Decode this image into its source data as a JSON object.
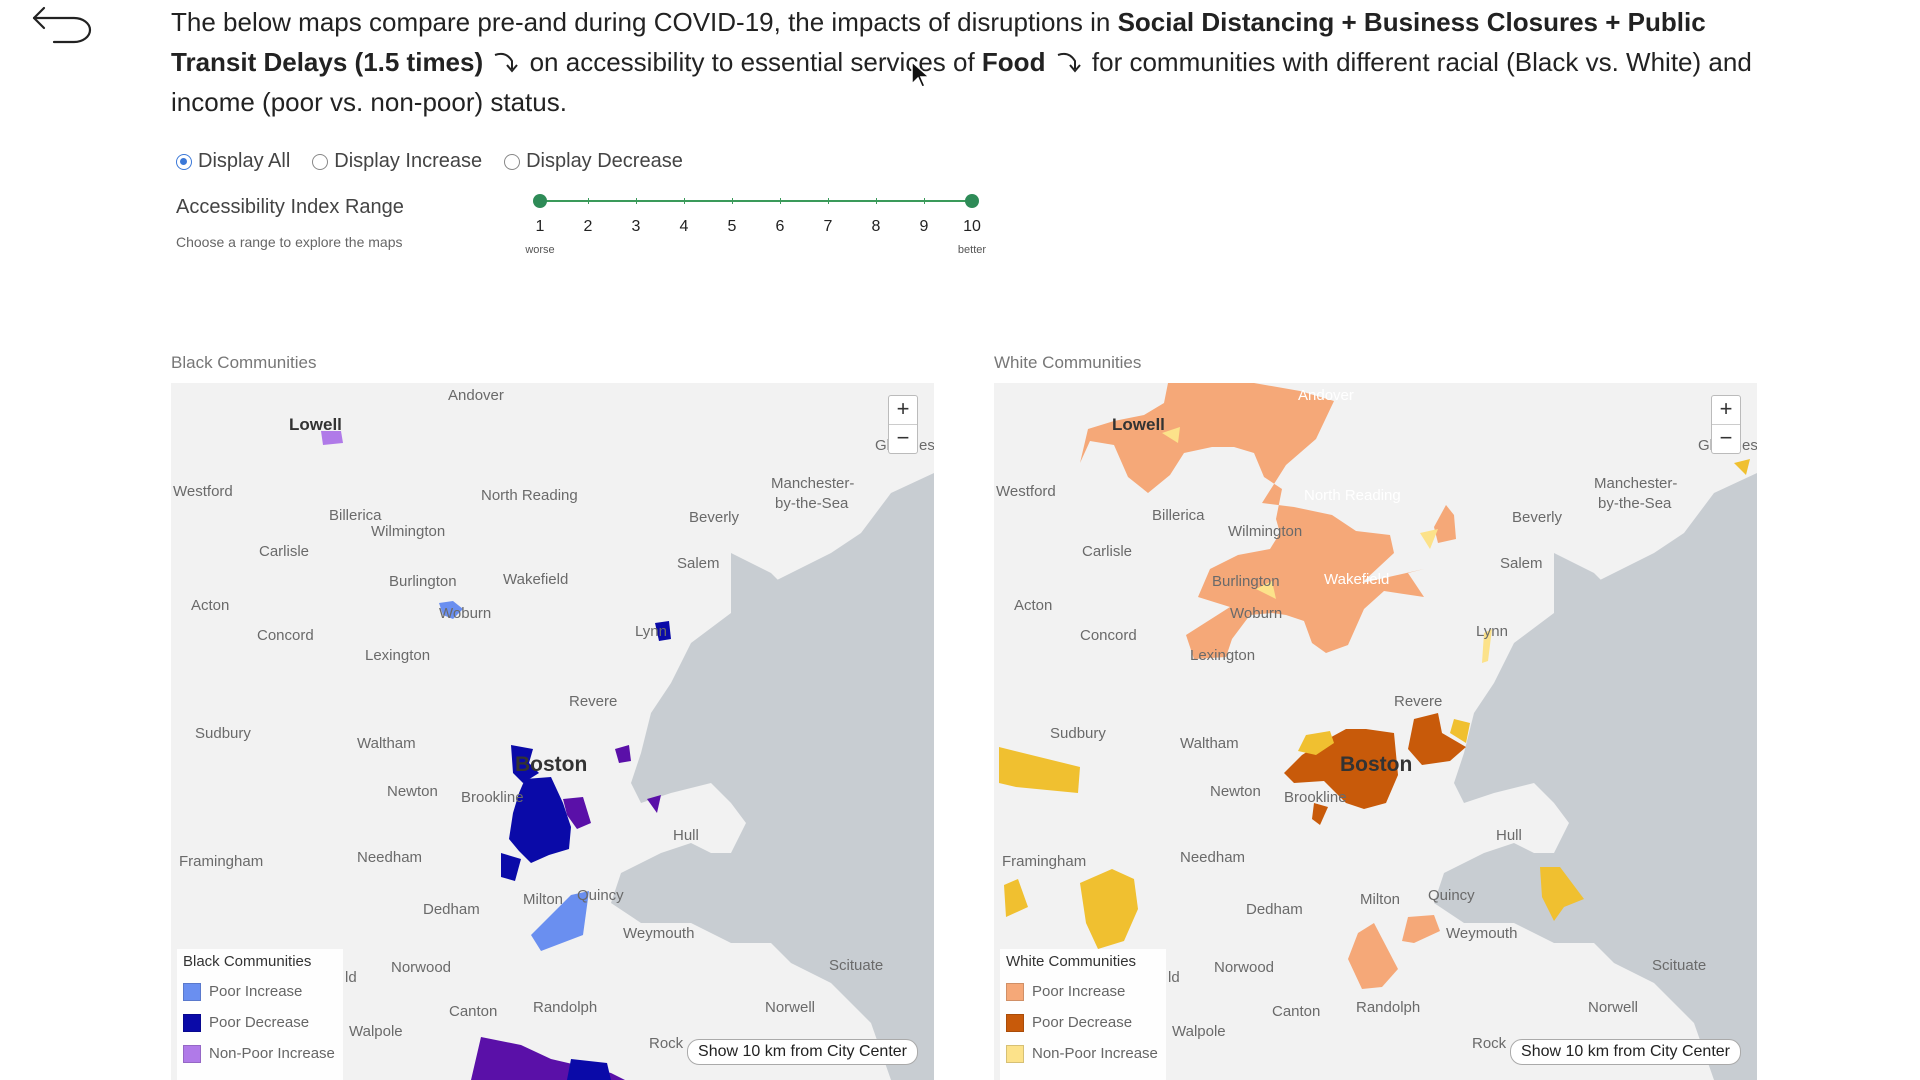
{
  "intro": {
    "p1": "The below maps compare pre-and during COVID-19, the impacts of disruptions in ",
    "b1": "Social Distancing + Business Closures + Public Transit Delays (1.5 times)",
    "p2": " on accessibility to essential services of ",
    "b2": "Food",
    "p3": " for communities with different racial (Black vs. White) and income (poor vs. non-poor) status."
  },
  "filters": {
    "options": [
      "Display All",
      "Display Increase",
      "Display Decrease"
    ],
    "selected": "Display All"
  },
  "range": {
    "title": "Accessibility Index Range",
    "subtitle": "Choose a range to explore the maps",
    "ticks": [
      "1",
      "2",
      "3",
      "4",
      "5",
      "6",
      "7",
      "8",
      "9",
      "10"
    ],
    "selected_min": 1,
    "selected_max": 10,
    "low_label": "worse",
    "high_label": "better"
  },
  "places": {
    "andover": "Andover",
    "lowell": "Lowell",
    "westford": "Westford",
    "north_reading": "North Reading",
    "billerica": "Billerica",
    "wilmington": "Wilmington",
    "manchester": "Manchester-",
    "manchester2": "by-the-Sea",
    "beverly": "Beverly",
    "carlisle": "Carlisle",
    "salem": "Salem",
    "burlington": "Burlington",
    "wakefield": "Wakefield",
    "acton": "Acton",
    "woburn": "Woburn",
    "concord": "Concord",
    "lynn": "Lynn",
    "lexington": "Lexington",
    "revere": "Revere",
    "sudbury": "Sudbury",
    "waltham": "Waltham",
    "boston": "Boston",
    "newton": "Newton",
    "brookline": "Brookline",
    "hull": "Hull",
    "framingham": "Framingham",
    "needham": "Needham",
    "milton": "Milton",
    "quincy": "Quincy",
    "dedham": "Dedham",
    "weymouth": "Weymouth",
    "norwood": "Norwood",
    "scituate": "Scituate",
    "canton": "Canton",
    "randolph": "Randolph",
    "norwell": "Norwell",
    "walpole": "Walpole",
    "rock": "Rock",
    "gl": "Gl",
    "es": "es",
    "ld": "ld"
  },
  "maps": {
    "zoom_in": "+",
    "zoom_out": "−",
    "show_btn": "Show 10 km from City Center",
    "black": {
      "title": "Black Communities",
      "legend_title": "Black Communities",
      "legend": [
        {
          "label": "Poor Increase",
          "color": "#6a8ff0"
        },
        {
          "label": "Poor Decrease",
          "color": "#0a0aa8"
        },
        {
          "label": "Non-Poor Increase",
          "color": "#b07ae8"
        }
      ]
    },
    "white": {
      "title": "White Communities",
      "legend_title": "White Communities",
      "legend": [
        {
          "label": "Poor Increase",
          "color": "#f5a878"
        },
        {
          "label": "Poor Decrease",
          "color": "#c85a0a"
        },
        {
          "label": "Non-Poor Increase",
          "color": "#fce28a"
        }
      ]
    }
  },
  "colors": {
    "accent_radio": "#3b78d8",
    "slider": "#2e8b57",
    "water": "#c8cdd2",
    "land": "#f2f2f2",
    "black_nonpoor_decrease": "#5a10a8",
    "white_nonpoor_decrease": "#f0c030"
  }
}
